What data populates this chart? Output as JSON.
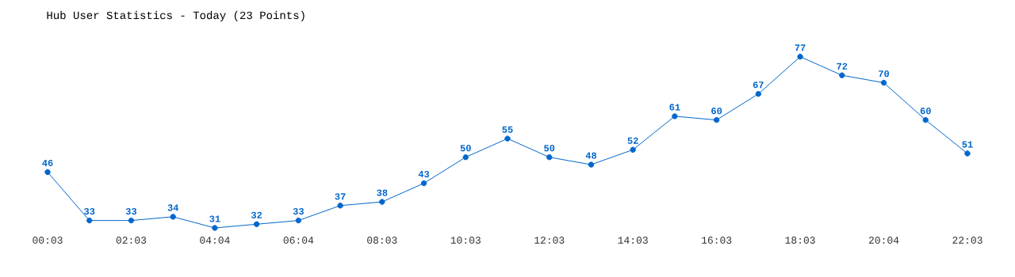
{
  "chart_data": {
    "type": "line",
    "title": "Hub User Statistics - Today (23 Points)",
    "categories": [
      "00:03",
      null,
      "02:03",
      null,
      "04:04",
      null,
      "06:04",
      null,
      "08:03",
      null,
      "10:03",
      null,
      "12:03",
      null,
      "14:03",
      null,
      "16:03",
      null,
      "18:03",
      null,
      "20:04",
      null,
      "22:03"
    ],
    "values": [
      46,
      33,
      33,
      34,
      31,
      32,
      33,
      37,
      38,
      43,
      50,
      55,
      50,
      48,
      52,
      61,
      60,
      67,
      77,
      72,
      70,
      60,
      51
    ],
    "color": "#0066cc",
    "data_labels": true,
    "marker": "circle",
    "line_style": "solid",
    "grid": false,
    "tick_labels": "x"
  }
}
